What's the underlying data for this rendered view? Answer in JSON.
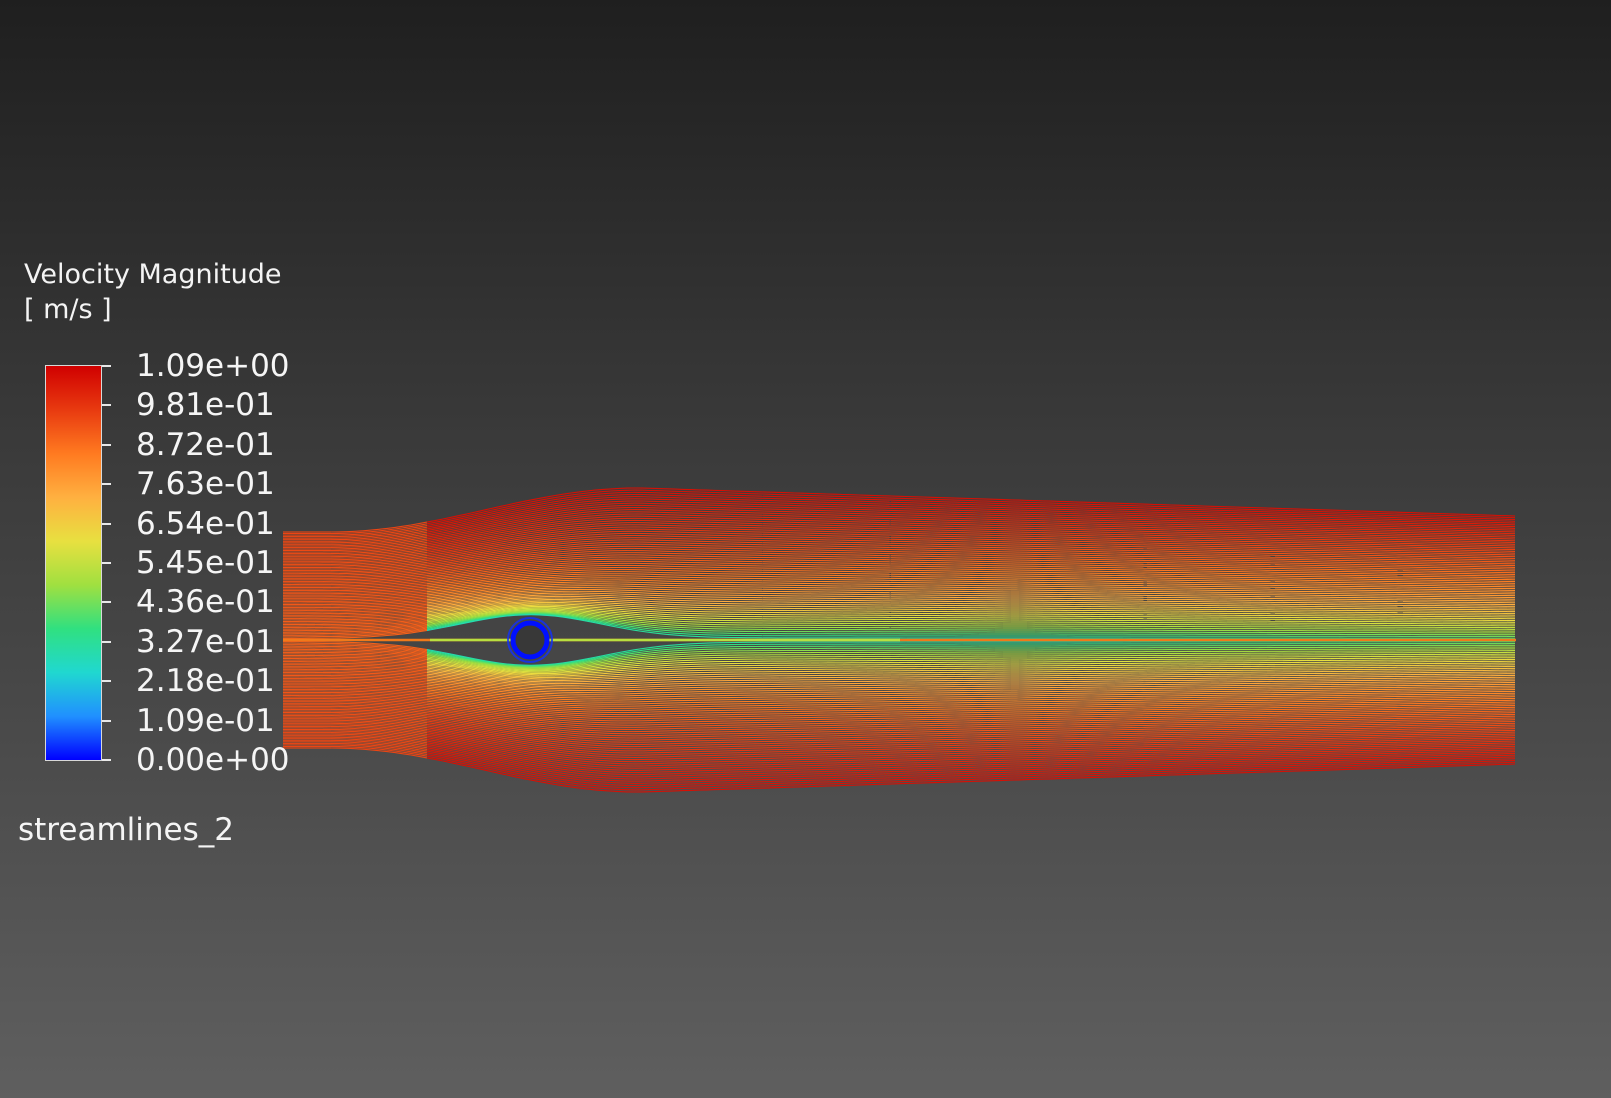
{
  "legend": {
    "title": "Velocity Magnitude",
    "unit": "[ m/s ]",
    "ticks": [
      "1.09e+00",
      "9.81e-01",
      "8.72e-01",
      "7.63e-01",
      "6.54e-01",
      "5.45e-01",
      "4.36e-01",
      "3.27e-01",
      "2.18e-01",
      "1.09e-01",
      "0.00e+00"
    ],
    "min": 0.0,
    "max": 1.09,
    "colormap": [
      "#0000ff",
      "#2090ff",
      "#20d8d0",
      "#30e080",
      "#a0e040",
      "#e8e040",
      "#ffb040",
      "#ff7a20",
      "#e83a10",
      "#d00000"
    ]
  },
  "plot": {
    "name": "streamlines_2",
    "type": "streamlines",
    "obstacle": "cylinder"
  },
  "colors": {
    "background_top": "#1f1f1f",
    "background_bottom": "#5f5f5f",
    "obstacle_edge": "#0000ff"
  }
}
